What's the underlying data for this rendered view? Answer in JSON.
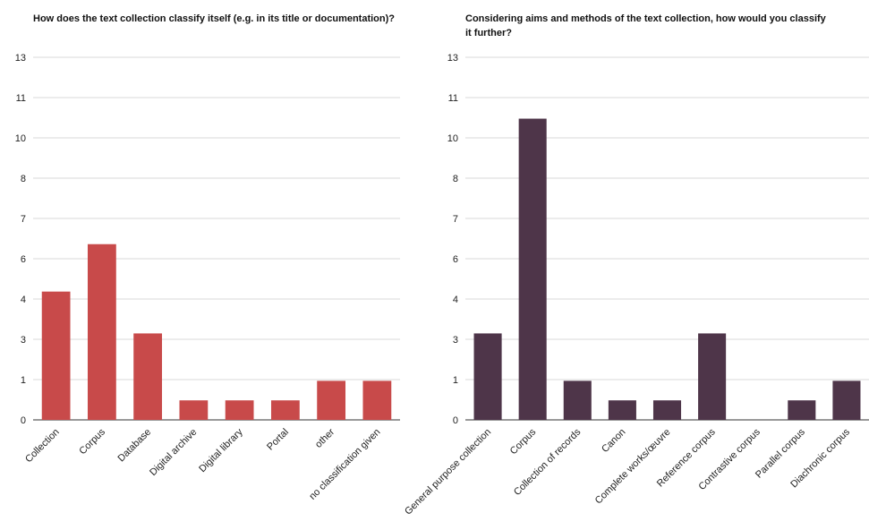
{
  "chart_data": [
    {
      "type": "bar",
      "title": "How does the text collection classify itself (e.g. in its title or documentation)?",
      "categories": [
        "Collection",
        "Corpus",
        "Database",
        "Digital archive",
        "Digital library",
        "Portal",
        "other",
        "no classification given"
      ],
      "values": [
        4.6,
        6.3,
        3.1,
        0.7,
        0.7,
        0.7,
        1.4,
        1.4
      ],
      "y_ticks": [
        0,
        1,
        3,
        4,
        6,
        7,
        8,
        10,
        11,
        13
      ],
      "ylim": [
        0,
        13
      ],
      "grid": true,
      "legend": "none",
      "bar_color": "#c84a4a",
      "xlabel": "",
      "ylabel": ""
    },
    {
      "type": "bar",
      "title": "Considering aims and methods of the text collection, how would you classify it further?",
      "categories": [
        "General purpose collection",
        "Corpus",
        "Collection of records",
        "Canon",
        "Complete works/œuvre",
        "Reference corpus",
        "Contrastive corpus",
        "Parallel corpus",
        "Diachronic corpus"
      ],
      "values": [
        3.1,
        10.8,
        1.4,
        0.7,
        0.7,
        3.1,
        0,
        0.7,
        1.4
      ],
      "y_ticks": [
        0,
        1,
        3,
        4,
        6,
        7,
        8,
        10,
        11,
        13
      ],
      "ylim": [
        0,
        13
      ],
      "grid": true,
      "legend": "none",
      "bar_color": "#4e3549",
      "xlabel": "",
      "ylabel": ""
    }
  ]
}
